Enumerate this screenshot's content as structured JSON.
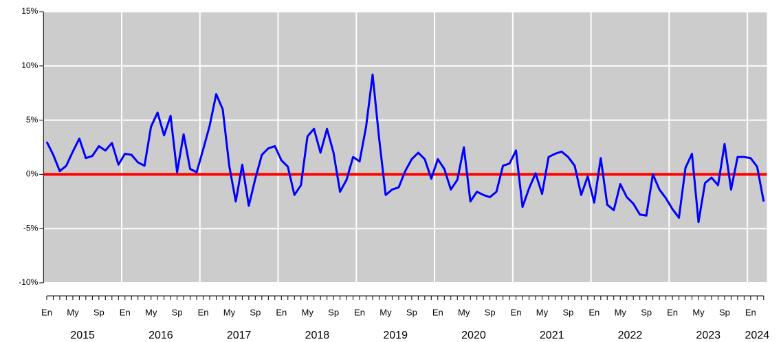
{
  "chart_data": {
    "type": "line",
    "categories": [
      "En",
      null,
      null,
      null,
      "My",
      null,
      null,
      null,
      "Sp",
      null,
      null,
      null,
      "En",
      null,
      null,
      null,
      "My",
      null,
      null,
      null,
      "Sp",
      null,
      null,
      null,
      "En",
      null,
      null,
      null,
      "My",
      null,
      null,
      null,
      "Sp",
      null,
      null,
      null,
      "En",
      null,
      null,
      null,
      "My",
      null,
      null,
      null,
      "Sp",
      null,
      null,
      null,
      "En",
      null,
      null,
      null,
      "My",
      null,
      null,
      null,
      "Sp",
      null,
      null,
      null,
      "En",
      null,
      null,
      null,
      "My",
      null,
      null,
      null,
      "Sp",
      null,
      null,
      null,
      "En",
      null,
      null,
      null,
      "My",
      null,
      null,
      null,
      "Sp",
      null,
      null,
      null,
      "En",
      null,
      null,
      null,
      "My",
      null,
      null,
      null,
      "Sp",
      null,
      null,
      null,
      "En",
      null,
      null,
      null,
      "My",
      null,
      null,
      null,
      "Sp",
      null,
      null,
      null,
      "En",
      null,
      null
    ],
    "years": [
      "2015",
      "2016",
      "2017",
      "2018",
      "2019",
      "2020",
      "2021",
      "2022",
      "2023",
      "2024"
    ],
    "values": [
      3.0,
      1.8,
      0.3,
      0.8,
      2.1,
      3.3,
      1.5,
      1.7,
      2.6,
      2.2,
      2.9,
      0.9,
      1.9,
      1.8,
      1.1,
      0.8,
      4.4,
      5.7,
      3.6,
      5.4,
      0.2,
      3.7,
      0.5,
      0.2,
      2.3,
      4.5,
      7.4,
      6.0,
      0.8,
      -2.5,
      0.9,
      -2.9,
      -0.4,
      1.8,
      2.4,
      2.6,
      1.3,
      0.7,
      -1.9,
      -1.0,
      3.5,
      4.2,
      2.0,
      4.2,
      2.0,
      -1.6,
      -0.5,
      1.6,
      1.2,
      4.4,
      9.2,
      3.3,
      -1.9,
      -1.4,
      -1.2,
      0.3,
      1.4,
      2.0,
      1.4,
      -0.4,
      1.4,
      0.5,
      -1.4,
      -0.5,
      2.5,
      -2.5,
      -1.6,
      -1.9,
      -2.1,
      -1.6,
      0.8,
      1.0,
      2.2,
      -3.0,
      -1.3,
      0.1,
      -1.8,
      1.6,
      1.9,
      2.1,
      1.6,
      0.8,
      -1.9,
      -0.2,
      -2.6,
      1.5,
      -2.8,
      -3.3,
      -0.9,
      -2.1,
      -2.7,
      -3.7,
      -3.8,
      0.0,
      -1.4,
      -2.2,
      -3.2,
      -4.0,
      0.6,
      1.9,
      -4.4,
      -0.8,
      -0.3,
      -1.0,
      2.8,
      -1.4,
      1.6,
      1.6,
      1.5,
      0.7,
      -2.5
    ],
    "color": "#0000ff",
    "reference_line": {
      "value": 0,
      "color": "#ff0000"
    },
    "ylim": [
      -10,
      15
    ],
    "yticks": [
      {
        "value": -10,
        "label": "-10%"
      },
      {
        "value": -5,
        "label": "-5%"
      },
      {
        "value": 0,
        "label": "0%"
      },
      {
        "value": 5,
        "label": "5%"
      },
      {
        "value": 10,
        "label": "10%"
      },
      {
        "value": 15,
        "label": "15%"
      }
    ],
    "grid": true,
    "background": "#cccccc"
  }
}
